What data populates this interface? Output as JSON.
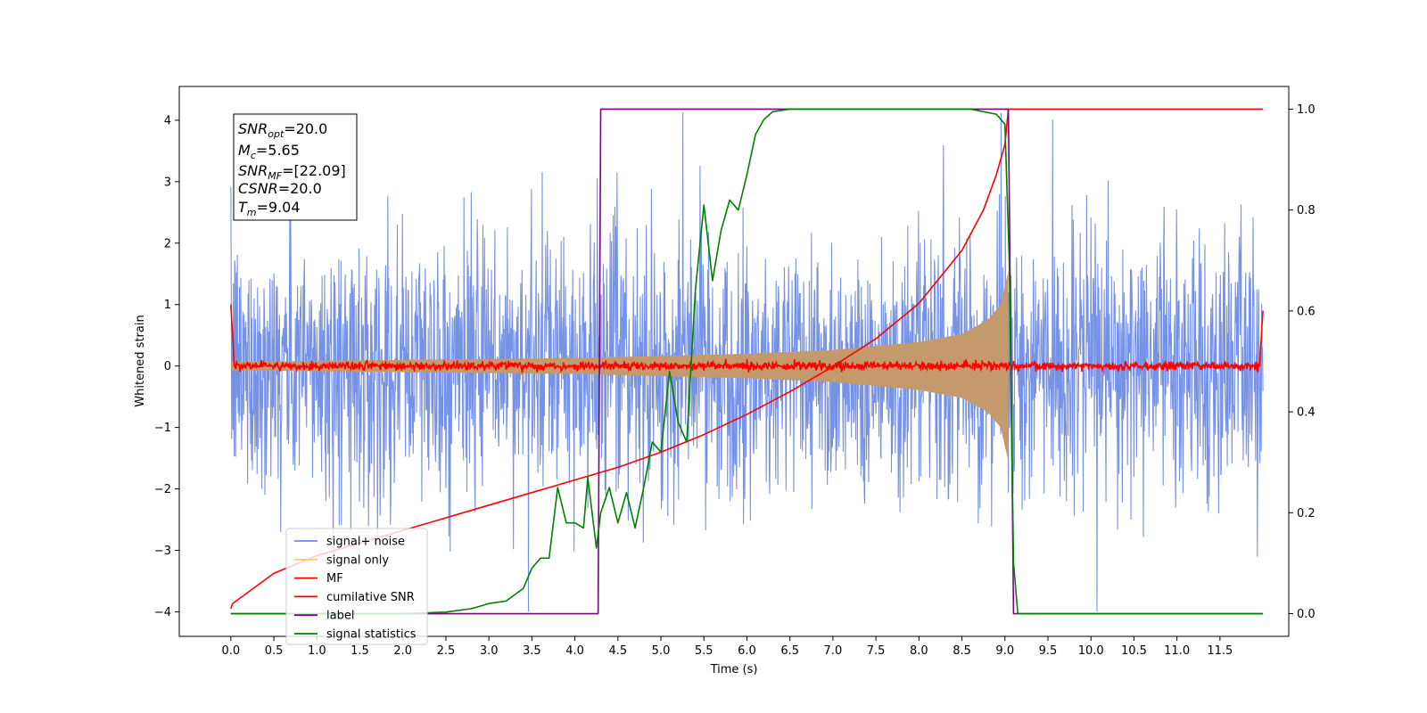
{
  "chart_data": {
    "type": "line",
    "xlabel": "Time (s)",
    "ylabel_left": "Whitened strain",
    "ylabel_right": "",
    "xlim": [
      -0.6,
      12.3
    ],
    "ylim_left": [
      -4.4,
      4.55
    ],
    "ylim_right": [
      -0.045,
      1.045
    ],
    "x_ticks": [
      0.0,
      0.5,
      1.0,
      1.5,
      2.0,
      2.5,
      3.0,
      3.5,
      4.0,
      4.5,
      5.0,
      5.5,
      6.0,
      6.5,
      7.0,
      7.5,
      8.0,
      8.5,
      9.0,
      9.5,
      10.0,
      10.5,
      11.0,
      11.5
    ],
    "x_tick_labels": [
      "0.0",
      "0.5",
      "1.0",
      "1.5",
      "2.0",
      "2.5",
      "3.0",
      "3.5",
      "4.0",
      "4.5",
      "5.0",
      "5.5",
      "6.0",
      "6.5",
      "7.0",
      "7.5",
      "8.0",
      "8.5",
      "9.0",
      "9.5",
      "10.0",
      "10.5",
      "11.0",
      "11.5"
    ],
    "y_left_ticks": [
      -4,
      -3,
      -2,
      -1,
      0,
      1,
      2,
      3,
      4
    ],
    "y_left_tick_labels": [
      "−4",
      "−3",
      "−2",
      "−1",
      "0",
      "1",
      "2",
      "3",
      "4"
    ],
    "y_right_ticks": [
      0.0,
      0.2,
      0.4,
      0.6,
      0.8,
      1.0
    ],
    "y_right_tick_labels": [
      "0.0",
      "0.2",
      "0.4",
      "0.6",
      "0.8",
      "1.0"
    ],
    "grid": false,
    "legend_placement": "lower-left",
    "series": [
      {
        "name": "signal+ noise",
        "color": "#6f8ce6",
        "axis": "left",
        "kind": "noise",
        "x_range": [
          0.0,
          12.0
        ],
        "amplitude_range": [
          -4.0,
          4.15
        ]
      },
      {
        "name": "signal only",
        "color": "#c49a6c",
        "legend_color": "#ffc966",
        "axis": "left",
        "kind": "chirp",
        "x_range": [
          0.0,
          9.04
        ],
        "envelope": [
          [
            0.0,
            0.07
          ],
          [
            2.0,
            0.1
          ],
          [
            4.0,
            0.13
          ],
          [
            6.0,
            0.2
          ],
          [
            7.0,
            0.26
          ],
          [
            8.0,
            0.39
          ],
          [
            8.5,
            0.52
          ],
          [
            8.8,
            0.75
          ],
          [
            8.95,
            1.0
          ],
          [
            9.04,
            1.55
          ]
        ]
      },
      {
        "name": "MF",
        "color": "#ff0000",
        "axis": "left",
        "kind": "mf",
        "x_range": [
          0.0,
          12.0
        ],
        "edges": {
          "start": 1.0,
          "end": 0.9
        }
      },
      {
        "name": "cumilative SNR",
        "color": "#ff0000",
        "axis": "right",
        "x": [
          0.0,
          0.02,
          0.5,
          1.0,
          1.5,
          2.0,
          2.5,
          3.0,
          3.5,
          4.0,
          4.5,
          5.0,
          5.5,
          6.0,
          6.5,
          7.0,
          7.5,
          8.0,
          8.5,
          8.75,
          8.9,
          9.0,
          9.04,
          12.0
        ],
        "values": [
          0.01,
          0.02,
          0.08,
          0.115,
          0.14,
          0.165,
          0.19,
          0.215,
          0.24,
          0.265,
          0.29,
          0.32,
          0.355,
          0.395,
          0.44,
          0.49,
          0.545,
          0.615,
          0.72,
          0.8,
          0.87,
          0.93,
          1.0,
          1.0
        ]
      },
      {
        "name": "label",
        "color": "#800080",
        "axis": "right",
        "x": [
          0.0,
          4.27,
          4.3,
          9.0,
          9.04,
          9.1,
          12.0
        ],
        "values": [
          0.0,
          0.0,
          1.0,
          1.0,
          1.0,
          0.0,
          0.0
        ]
      },
      {
        "name": "signal statistics",
        "color": "#008000",
        "axis": "right",
        "x": [
          0.0,
          1.0,
          2.0,
          2.5,
          2.8,
          3.0,
          3.2,
          3.4,
          3.5,
          3.6,
          3.7,
          3.8,
          3.9,
          4.0,
          4.1,
          4.15,
          4.25,
          4.3,
          4.4,
          4.5,
          4.6,
          4.7,
          4.8,
          4.9,
          5.0,
          5.1,
          5.2,
          5.3,
          5.4,
          5.5,
          5.6,
          5.7,
          5.8,
          5.9,
          6.0,
          6.1,
          6.2,
          6.3,
          6.5,
          7.0,
          8.0,
          8.6,
          8.9,
          9.0,
          9.05,
          9.1,
          9.15,
          12.0
        ],
        "values": [
          0.0,
          0.0,
          0.0,
          0.003,
          0.01,
          0.02,
          0.025,
          0.05,
          0.09,
          0.11,
          0.11,
          0.25,
          0.18,
          0.18,
          0.17,
          0.27,
          0.13,
          0.2,
          0.25,
          0.18,
          0.24,
          0.17,
          0.25,
          0.34,
          0.32,
          0.48,
          0.38,
          0.34,
          0.64,
          0.81,
          0.66,
          0.76,
          0.82,
          0.8,
          0.87,
          0.95,
          0.98,
          0.995,
          1.0,
          1.0,
          1.0,
          1.0,
          0.99,
          0.97,
          0.7,
          0.1,
          0.0,
          0.0
        ]
      }
    ]
  },
  "info_box": {
    "snr_opt_label": "SNR",
    "snr_opt_sub": "opt",
    "snr_opt_value": "=20.0",
    "mc_label": "M",
    "mc_sub": "c",
    "mc_value": "=5.65",
    "snr_mf_label": "SNR",
    "snr_mf_sub": "MF",
    "snr_mf_value": "=[22.09]",
    "csnr_label": "CSNR",
    "csnr_value": "=20.0",
    "tm_label": "T",
    "tm_sub": "m",
    "tm_value": "=9.04"
  },
  "legend": [
    {
      "label": "signal+ noise",
      "color": "#6f8ce6"
    },
    {
      "label": "signal only",
      "color": "#ffc966"
    },
    {
      "label": "MF",
      "color": "#ff0000"
    },
    {
      "label": "cumilative SNR",
      "color": "#ff0000"
    },
    {
      "label": "label",
      "color": "#800080"
    },
    {
      "label": "signal statistics",
      "color": "#008000"
    }
  ]
}
